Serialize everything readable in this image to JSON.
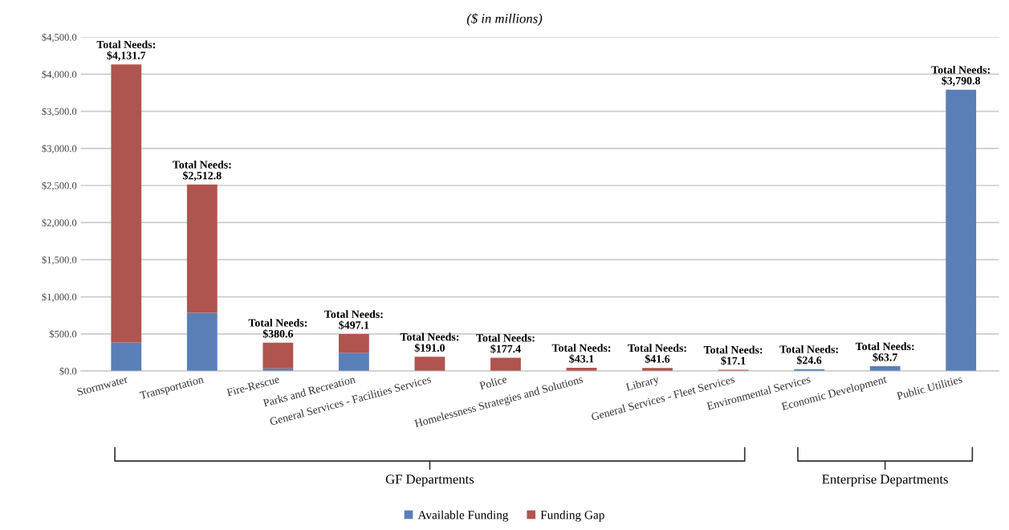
{
  "chart_data": {
    "type": "bar",
    "subtitle": "($ in millions)",
    "categories": [
      "Stormwater",
      "Transportation",
      "Fire-Rescue",
      "Parks and Recreation",
      "General Services - Facilities Services",
      "Police",
      "Homelessness Strategies and Solutions",
      "Library",
      "General Services - Fleet Services",
      "Environmental Services",
      "Economic Development",
      "Public Utilities"
    ],
    "stacked": true,
    "series": [
      {
        "name": "Available Funding",
        "color": "#5a7fb8",
        "values": [
          385,
          785,
          35,
          245,
          null,
          null,
          null,
          null,
          null,
          24.6,
          63.7,
          3790.8
        ]
      },
      {
        "name": "Funding Gap",
        "color": "#b0544f",
        "values": [
          3746.7,
          1727.8,
          345.6,
          252.1,
          191.0,
          177.4,
          43.1,
          41.6,
          17.1,
          null,
          null,
          null
        ]
      }
    ],
    "totals": [
      "Total Needs:\n$4,131.7",
      "Total Needs:\n$2,512.8",
      "Total Needs:\n$380.6",
      "Total Needs:\n$497.1",
      "Total Needs:\n$191.0",
      "Total Needs:\n$177.4",
      "Total Needs:\n$43.1",
      "Total Needs:\n$41.6",
      "Total Needs:\n$17.1",
      "Total Needs:\n$24.6",
      "Total Needs:\n$63.7",
      "Total Needs:\n$3,790.8"
    ],
    "ylim": [
      0,
      4500
    ],
    "yticks": [
      {
        "value": 0,
        "label": "$0.0"
      },
      {
        "value": 500,
        "label": "$500.0"
      },
      {
        "value": 1000,
        "label": "$1,000.0"
      },
      {
        "value": 1500,
        "label": "$1,500.0"
      },
      {
        "value": 2000,
        "label": "$2,000.0"
      },
      {
        "value": 2500,
        "label": "$2,500.0"
      },
      {
        "value": 3000,
        "label": "$3,000.0"
      },
      {
        "value": 3500,
        "label": "$3,500.0"
      },
      {
        "value": 4000,
        "label": "$4,000.0"
      },
      {
        "value": 4500,
        "label": "$4,500.0"
      }
    ],
    "grid": "y",
    "legend": "bottom",
    "annotations": [
      "GF Departments",
      "Enterprise Departments"
    ]
  }
}
